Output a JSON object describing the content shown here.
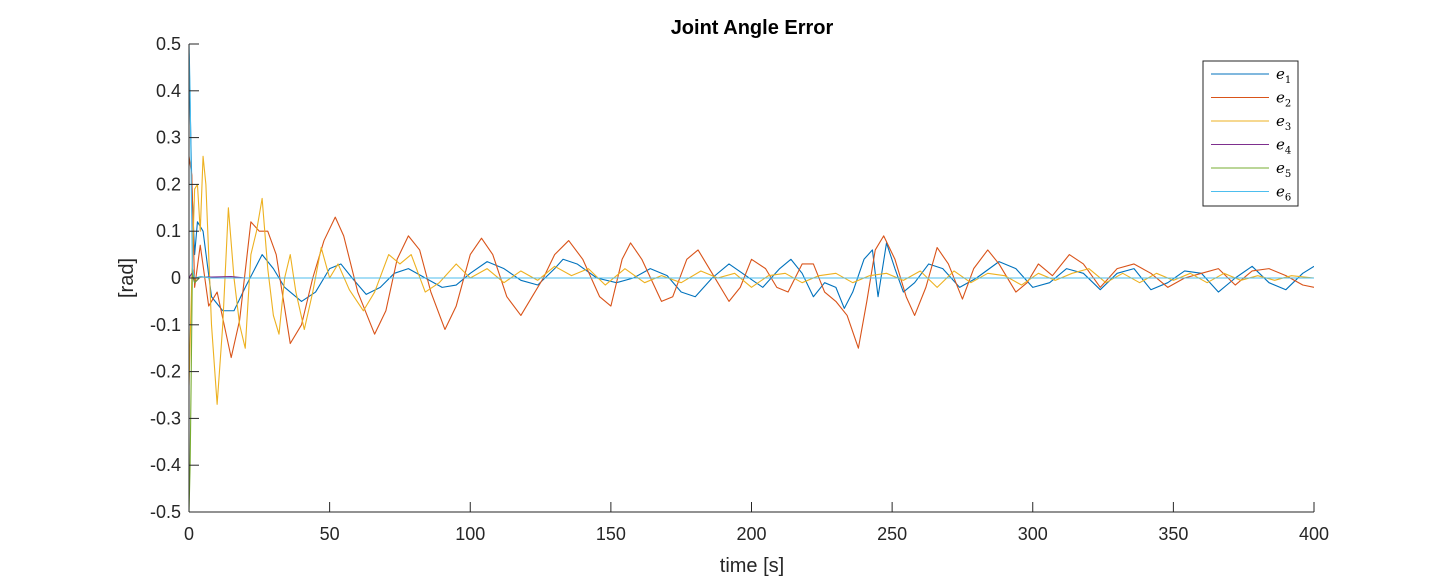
{
  "chart_data": {
    "type": "line",
    "title": "Joint Angle Error",
    "xlabel": "time [s]",
    "ylabel": "[rad]",
    "xlim": [
      0,
      400
    ],
    "ylim": [
      -0.5,
      0.5
    ],
    "xticks": [
      "0",
      "50",
      "100",
      "150",
      "200",
      "250",
      "300",
      "350",
      "400"
    ],
    "yticks": [
      "0.5",
      "0.4",
      "0.3",
      "0.2",
      "0.1",
      "0",
      "-0.1",
      "-0.2",
      "-0.3",
      "-0.4",
      "-0.5"
    ],
    "grid": false,
    "legend_position": "top-right",
    "series": [
      {
        "name": "e",
        "subscript": "1",
        "color": "#0072BD",
        "points": [
          [
            0,
            0.48
          ],
          [
            1,
            0.2
          ],
          [
            2,
            0.05
          ],
          [
            3,
            0.12
          ],
          [
            5,
            0.1
          ],
          [
            8,
            -0.04
          ],
          [
            12,
            -0.07
          ],
          [
            16,
            -0.07
          ],
          [
            20,
            -0.02
          ],
          [
            26,
            0.05
          ],
          [
            30,
            0.02
          ],
          [
            34,
            -0.02
          ],
          [
            40,
            -0.05
          ],
          [
            45,
            -0.03
          ],
          [
            50,
            0.02
          ],
          [
            54,
            0.03
          ],
          [
            58,
            0.0
          ],
          [
            63,
            -0.035
          ],
          [
            68,
            -0.02
          ],
          [
            73,
            0.01
          ],
          [
            78,
            0.02
          ],
          [
            84,
            0.0
          ],
          [
            90,
            -0.02
          ],
          [
            95,
            -0.015
          ],
          [
            100,
            0.01
          ],
          [
            106,
            0.035
          ],
          [
            112,
            0.02
          ],
          [
            118,
            -0.005
          ],
          [
            124,
            -0.015
          ],
          [
            130,
            0.02
          ],
          [
            133,
            0.04
          ],
          [
            138,
            0.03
          ],
          [
            145,
            0.0
          ],
          [
            152,
            -0.01
          ],
          [
            158,
            0.0
          ],
          [
            164,
            0.02
          ],
          [
            170,
            0.005
          ],
          [
            175,
            -0.03
          ],
          [
            180,
            -0.04
          ],
          [
            186,
            0.0
          ],
          [
            192,
            0.03
          ],
          [
            198,
            0.005
          ],
          [
            204,
            -0.02
          ],
          [
            210,
            0.02
          ],
          [
            214,
            0.04
          ],
          [
            218,
            0.01
          ],
          [
            222,
            -0.04
          ],
          [
            226,
            -0.01
          ],
          [
            230,
            -0.02
          ],
          [
            233,
            -0.065
          ],
          [
            236,
            -0.03
          ],
          [
            240,
            0.04
          ],
          [
            243,
            0.06
          ],
          [
            245,
            -0.04
          ],
          [
            248,
            0.075
          ],
          [
            251,
            0.02
          ],
          [
            254,
            -0.03
          ],
          [
            258,
            -0.01
          ],
          [
            263,
            0.03
          ],
          [
            268,
            0.02
          ],
          [
            274,
            -0.02
          ],
          [
            280,
            0.0
          ],
          [
            288,
            0.035
          ],
          [
            294,
            0.02
          ],
          [
            300,
            -0.02
          ],
          [
            306,
            -0.01
          ],
          [
            312,
            0.02
          ],
          [
            318,
            0.01
          ],
          [
            324,
            -0.025
          ],
          [
            330,
            0.01
          ],
          [
            336,
            0.02
          ],
          [
            342,
            -0.025
          ],
          [
            348,
            -0.01
          ],
          [
            354,
            0.015
          ],
          [
            360,
            0.01
          ],
          [
            366,
            -0.03
          ],
          [
            372,
            0.0
          ],
          [
            378,
            0.025
          ],
          [
            384,
            -0.01
          ],
          [
            390,
            -0.025
          ],
          [
            396,
            0.01
          ],
          [
            400,
            0.025
          ]
        ]
      },
      {
        "name": "e",
        "subscript": "2",
        "color": "#D95319",
        "points": [
          [
            0,
            0.26
          ],
          [
            1,
            0.22
          ],
          [
            2,
            -0.02
          ],
          [
            4,
            0.07
          ],
          [
            7,
            -0.06
          ],
          [
            10,
            -0.03
          ],
          [
            15,
            -0.17
          ],
          [
            18,
            -0.09
          ],
          [
            22,
            0.12
          ],
          [
            25,
            0.1
          ],
          [
            28,
            0.1
          ],
          [
            31,
            0.05
          ],
          [
            36,
            -0.14
          ],
          [
            40,
            -0.1
          ],
          [
            44,
            0.0
          ],
          [
            48,
            0.08
          ],
          [
            52,
            0.13
          ],
          [
            55,
            0.09
          ],
          [
            60,
            -0.03
          ],
          [
            66,
            -0.12
          ],
          [
            70,
            -0.07
          ],
          [
            74,
            0.04
          ],
          [
            78,
            0.09
          ],
          [
            82,
            0.06
          ],
          [
            86,
            -0.03
          ],
          [
            91,
            -0.11
          ],
          [
            95,
            -0.06
          ],
          [
            100,
            0.05
          ],
          [
            104,
            0.085
          ],
          [
            108,
            0.05
          ],
          [
            113,
            -0.04
          ],
          [
            118,
            -0.08
          ],
          [
            122,
            -0.04
          ],
          [
            126,
            0.0
          ],
          [
            130,
            0.05
          ],
          [
            135,
            0.08
          ],
          [
            140,
            0.04
          ],
          [
            146,
            -0.04
          ],
          [
            150,
            -0.06
          ],
          [
            154,
            0.04
          ],
          [
            157,
            0.075
          ],
          [
            161,
            0.04
          ],
          [
            168,
            -0.05
          ],
          [
            172,
            -0.04
          ],
          [
            177,
            0.04
          ],
          [
            181,
            0.06
          ],
          [
            186,
            0.01
          ],
          [
            192,
            -0.05
          ],
          [
            196,
            -0.02
          ],
          [
            200,
            0.04
          ],
          [
            205,
            0.02
          ],
          [
            209,
            -0.02
          ],
          [
            213,
            -0.03
          ],
          [
            218,
            0.03
          ],
          [
            222,
            0.03
          ],
          [
            226,
            -0.03
          ],
          [
            230,
            -0.05
          ],
          [
            234,
            -0.08
          ],
          [
            238,
            -0.15
          ],
          [
            241,
            -0.05
          ],
          [
            244,
            0.06
          ],
          [
            247,
            0.09
          ],
          [
            251,
            0.04
          ],
          [
            255,
            -0.04
          ],
          [
            258,
            -0.08
          ],
          [
            262,
            -0.02
          ],
          [
            266,
            0.065
          ],
          [
            270,
            0.03
          ],
          [
            275,
            -0.045
          ],
          [
            279,
            0.02
          ],
          [
            284,
            0.06
          ],
          [
            288,
            0.03
          ],
          [
            294,
            -0.03
          ],
          [
            298,
            -0.01
          ],
          [
            302,
            0.03
          ],
          [
            307,
            0.005
          ],
          [
            313,
            0.05
          ],
          [
            318,
            0.03
          ],
          [
            324,
            -0.02
          ],
          [
            330,
            0.02
          ],
          [
            336,
            0.03
          ],
          [
            342,
            0.01
          ],
          [
            348,
            -0.02
          ],
          [
            354,
            0.0
          ],
          [
            360,
            0.01
          ],
          [
            366,
            0.02
          ],
          [
            372,
            -0.015
          ],
          [
            378,
            0.015
          ],
          [
            384,
            0.02
          ],
          [
            390,
            0.005
          ],
          [
            396,
            -0.015
          ],
          [
            400,
            -0.02
          ]
        ]
      },
      {
        "name": "e",
        "subscript": "3",
        "color": "#EDB120",
        "points": [
          [
            0,
            -0.23
          ],
          [
            1,
            0.0
          ],
          [
            2,
            0.19
          ],
          [
            3,
            0.2
          ],
          [
            4,
            0.1
          ],
          [
            5,
            0.26
          ],
          [
            6,
            0.2
          ],
          [
            8,
            -0.1
          ],
          [
            10,
            -0.27
          ],
          [
            12,
            -0.1
          ],
          [
            14,
            0.15
          ],
          [
            16,
            0.0
          ],
          [
            18,
            -0.1
          ],
          [
            20,
            -0.15
          ],
          [
            22,
            0.05
          ],
          [
            24,
            0.1
          ],
          [
            26,
            0.17
          ],
          [
            28,
            0.02
          ],
          [
            30,
            -0.08
          ],
          [
            32,
            -0.12
          ],
          [
            34,
            0.0
          ],
          [
            36,
            0.05
          ],
          [
            38,
            -0.03
          ],
          [
            41,
            -0.11
          ],
          [
            44,
            -0.03
          ],
          [
            47,
            0.065
          ],
          [
            50,
            0.0
          ],
          [
            53,
            0.03
          ],
          [
            57,
            -0.025
          ],
          [
            62,
            -0.07
          ],
          [
            66,
            -0.03
          ],
          [
            71,
            0.05
          ],
          [
            75,
            0.03
          ],
          [
            79,
            0.05
          ],
          [
            84,
            -0.03
          ],
          [
            89,
            -0.01
          ],
          [
            95,
            0.03
          ],
          [
            100,
            0.0
          ],
          [
            106,
            0.02
          ],
          [
            112,
            -0.01
          ],
          [
            118,
            0.015
          ],
          [
            124,
            -0.005
          ],
          [
            130,
            0.025
          ],
          [
            136,
            0.005
          ],
          [
            142,
            0.02
          ],
          [
            148,
            -0.015
          ],
          [
            155,
            0.02
          ],
          [
            162,
            -0.01
          ],
          [
            168,
            0.005
          ],
          [
            175,
            -0.01
          ],
          [
            182,
            0.015
          ],
          [
            188,
            0.0
          ],
          [
            194,
            0.01
          ],
          [
            200,
            -0.02
          ],
          [
            206,
            0.005
          ],
          [
            212,
            0.01
          ],
          [
            218,
            -0.01
          ],
          [
            224,
            0.005
          ],
          [
            230,
            0.01
          ],
          [
            236,
            -0.01
          ],
          [
            242,
            0.005
          ],
          [
            248,
            0.01
          ],
          [
            254,
            -0.005
          ],
          [
            260,
            0.015
          ],
          [
            266,
            -0.02
          ],
          [
            272,
            0.015
          ],
          [
            278,
            -0.01
          ],
          [
            284,
            0.01
          ],
          [
            290,
            0.005
          ],
          [
            296,
            -0.015
          ],
          [
            302,
            0.01
          ],
          [
            308,
            -0.005
          ],
          [
            314,
            0.01
          ],
          [
            320,
            0.02
          ],
          [
            326,
            -0.01
          ],
          [
            332,
            0.01
          ],
          [
            338,
            -0.01
          ],
          [
            344,
            0.01
          ],
          [
            350,
            -0.005
          ],
          [
            356,
            0.01
          ],
          [
            362,
            -0.01
          ],
          [
            368,
            0.01
          ],
          [
            374,
            -0.005
          ],
          [
            380,
            0.005
          ],
          [
            386,
            -0.005
          ],
          [
            392,
            0.005
          ],
          [
            400,
            0.0
          ]
        ]
      },
      {
        "name": "e",
        "subscript": "4",
        "color": "#7E2F8E",
        "points": [
          [
            0,
            0.0
          ],
          [
            1,
            0.01
          ],
          [
            2,
            -0.01
          ],
          [
            4,
            0.002
          ],
          [
            8,
            0.002
          ],
          [
            15,
            0.003
          ],
          [
            20,
            0.0
          ],
          [
            30,
            0.0
          ],
          [
            60,
            0.0
          ],
          [
            120,
            0.0
          ],
          [
            200,
            0.0
          ],
          [
            300,
            0.0
          ],
          [
            400,
            0.0
          ]
        ]
      },
      {
        "name": "e",
        "subscript": "5",
        "color": "#77AC30",
        "points": [
          [
            0,
            -0.5
          ],
          [
            0.4,
            -0.4
          ],
          [
            0.8,
            -0.2
          ],
          [
            1.2,
            0.02
          ],
          [
            2,
            -0.01
          ],
          [
            4,
            0.003
          ],
          [
            8,
            0.0
          ],
          [
            30,
            0.0
          ],
          [
            100,
            0.0
          ],
          [
            200,
            0.0
          ],
          [
            300,
            0.0
          ],
          [
            400,
            0.0
          ]
        ]
      },
      {
        "name": "e",
        "subscript": "6",
        "color": "#4DBEEE",
        "points": [
          [
            0,
            0.5
          ],
          [
            0.4,
            0.4
          ],
          [
            0.8,
            0.2
          ],
          [
            1.2,
            0.02
          ],
          [
            2,
            0.0
          ],
          [
            4,
            0.003
          ],
          [
            8,
            0.0
          ],
          [
            30,
            0.0
          ],
          [
            100,
            0.0
          ],
          [
            200,
            0.0
          ],
          [
            300,
            0.0
          ],
          [
            400,
            0.0
          ]
        ]
      }
    ]
  }
}
